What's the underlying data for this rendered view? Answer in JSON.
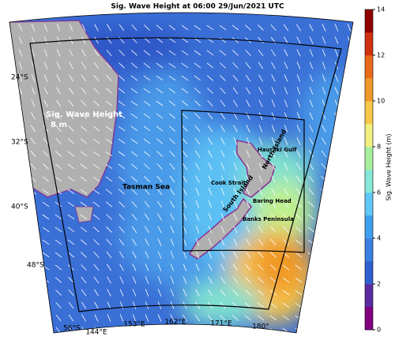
{
  "title": "Sig. Wave Height at 06:00 29/Jun/2021 UTC",
  "colorbar": {
    "label": "Sig. Wave Height (m)",
    "lim": [
      0,
      14
    ],
    "ticks": [
      0,
      2,
      4,
      6,
      8,
      10,
      12,
      14
    ],
    "colors": [
      "#800080",
      "#5a2ca0",
      "#3060d0",
      "#3a80e0",
      "#40a0f0",
      "#60c8f8",
      "#88e8d8",
      "#a8f0a0",
      "#f0f080",
      "#f8c848",
      "#f09828",
      "#e86a18",
      "#d03010",
      "#900000"
    ]
  },
  "lat_labels": [
    "24°S",
    "32°S",
    "40°S",
    "48°S",
    "56°S"
  ],
  "lon_labels": [
    "144°E",
    "153°E",
    "162°E",
    "171°E",
    "180°"
  ],
  "places": [
    "Tasman Sea",
    "Hauraki Gulf",
    "Cook Strait",
    "Baring Head",
    "Banks Peninsula",
    "South Island",
    "North Island"
  ],
  "legend": {
    "title": "Sig. Wave Height",
    "value": "8 m"
  }
}
